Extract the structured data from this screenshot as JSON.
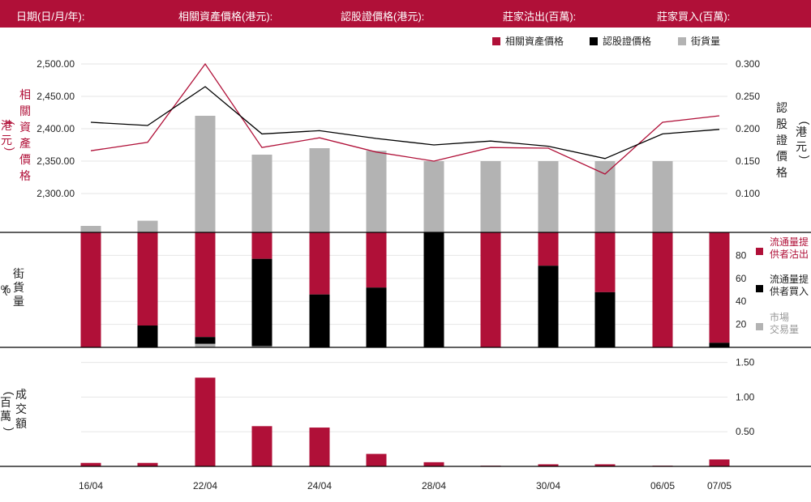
{
  "header": {
    "date_label": "日期(日/月/年):",
    "underlying_label": "相關資產價格(港元):",
    "warrant_label": "認股證價格(港元):",
    "mm_sell_label": "莊家沽出(百萬):",
    "mm_buy_label": "莊家買入(百萬):"
  },
  "colors": {
    "crimson": "#b01038",
    "black": "#000000",
    "gray": "#b3b3b3",
    "header_bg": "#b01038"
  },
  "chart_data": [
    {
      "type": "line",
      "x": [
        "16/04",
        "",
        "22/04",
        "",
        "24/04",
        "",
        "28/04",
        "",
        "30/04",
        "",
        "06/05",
        "07/05"
      ],
      "series": [
        {
          "name": "相關資產價格",
          "axis": "left",
          "color": "#b01038",
          "values": [
            2366,
            2379,
            2500,
            2371,
            2386,
            2364,
            2350,
            2371,
            2370,
            2330,
            2410,
            2420
          ]
        },
        {
          "name": "認股證價格",
          "axis": "right",
          "color": "#000000",
          "values": [
            0.21,
            0.205,
            0.265,
            0.192,
            0.197,
            0.185,
            0.175,
            0.181,
            0.173,
            0.154,
            0.192,
            0.199
          ]
        }
      ],
      "legend": [
        "相關資產價格",
        "認股證價格",
        "街貨量"
      ],
      "legend_position": "top-right",
      "y_left_label": "相關資產價格",
      "y_left_unit": "(港元)",
      "y_left_ticks": [
        "2,300.00",
        "2,350.00",
        "2,400.00",
        "2,450.00",
        "2,500.00"
      ],
      "y_left_range": [
        2240,
        2500
      ],
      "y_right_label": "認股證價格",
      "y_right_unit": "(港元)",
      "y_right_ticks": [
        "0.100",
        "0.150",
        "0.200",
        "0.250",
        "0.300"
      ],
      "y_right_range": [
        0.04,
        0.3
      ],
      "grid": true
    },
    {
      "type": "bar",
      "name": "街貨量",
      "x": [
        "16/04",
        "",
        "22/04",
        "",
        "24/04",
        "",
        "28/04",
        "",
        "30/04",
        "",
        "06/05",
        "07/05"
      ],
      "values": [
        0.5,
        0.9,
        9.0,
        6.0,
        6.5,
        6.3,
        5.5,
        5.5,
        5.5,
        5.5,
        5.5,
        0
      ],
      "color": "#b3b3b3"
    },
    {
      "type": "bar",
      "stacked": true,
      "ylabel": "街貨量",
      "yunit": "%",
      "y_ticks": [
        "20",
        "40",
        "60",
        "80"
      ],
      "ylim": [
        0,
        100
      ],
      "x": [
        "16/04",
        "",
        "22/04",
        "",
        "24/04",
        "",
        "28/04",
        "",
        "30/04",
        "",
        "06/05",
        "07/05"
      ],
      "series": [
        {
          "name": "流通量提供者沽出",
          "color": "#b01038",
          "values": [
            100,
            81,
            91,
            23,
            54,
            48,
            0,
            100,
            29,
            52,
            100,
            96
          ]
        },
        {
          "name": "流通量提供者買入",
          "color": "#000000",
          "values": [
            0,
            19,
            6,
            76,
            46,
            52,
            100,
            0,
            71,
            48,
            0,
            4
          ]
        },
        {
          "name": "市場交易量",
          "color": "#b3b3b3",
          "values": [
            0,
            0,
            3,
            1,
            0,
            0,
            0,
            0,
            0,
            0,
            0,
            0
          ]
        }
      ],
      "legend": [
        "流通量提供者沽出",
        "流通量提供者買入",
        "市場交易量"
      ],
      "legend_position": "right"
    },
    {
      "type": "bar",
      "ylabel": "成交額",
      "yunit": "(百萬)",
      "y_ticks": [
        "0.50",
        "1.00",
        "1.50"
      ],
      "ylim": [
        0,
        1.6
      ],
      "x": [
        "16/04",
        "",
        "22/04",
        "",
        "24/04",
        "",
        "28/04",
        "",
        "30/04",
        "",
        "06/05",
        "07/05"
      ],
      "values": [
        0.05,
        0.05,
        1.28,
        0.58,
        0.56,
        0.18,
        0.06,
        0.01,
        0.03,
        0.03,
        0.01,
        0.1
      ],
      "color": "#b01038"
    }
  ]
}
